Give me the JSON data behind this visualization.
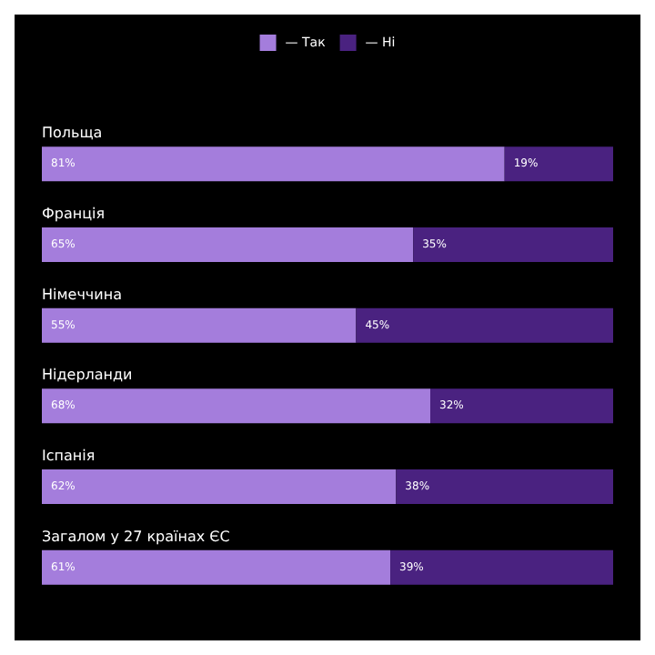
{
  "chart_data": {
    "type": "bar",
    "orientation": "horizontal",
    "stacked": true,
    "legend": "top",
    "grid": false,
    "tick_labels": "y",
    "categories": [
      "Польща",
      "Франція",
      "Німеччина",
      "Нідерланди",
      "Іспанія",
      "Загалом у 27 країнах ЄС"
    ],
    "series": [
      {
        "name": "— Так",
        "color": "#a47ddc",
        "values": [
          81,
          65,
          55,
          68,
          62,
          61
        ],
        "value_labels": [
          "81%",
          "65%",
          "55%",
          "68%",
          "62%",
          "61%"
        ]
      },
      {
        "name": "— Ні",
        "color": "#4a2280",
        "values": [
          19,
          35,
          45,
          32,
          38,
          39
        ],
        "value_labels": [
          "19%",
          "35%",
          "45%",
          "32%",
          "38%",
          "39%"
        ]
      }
    ]
  }
}
